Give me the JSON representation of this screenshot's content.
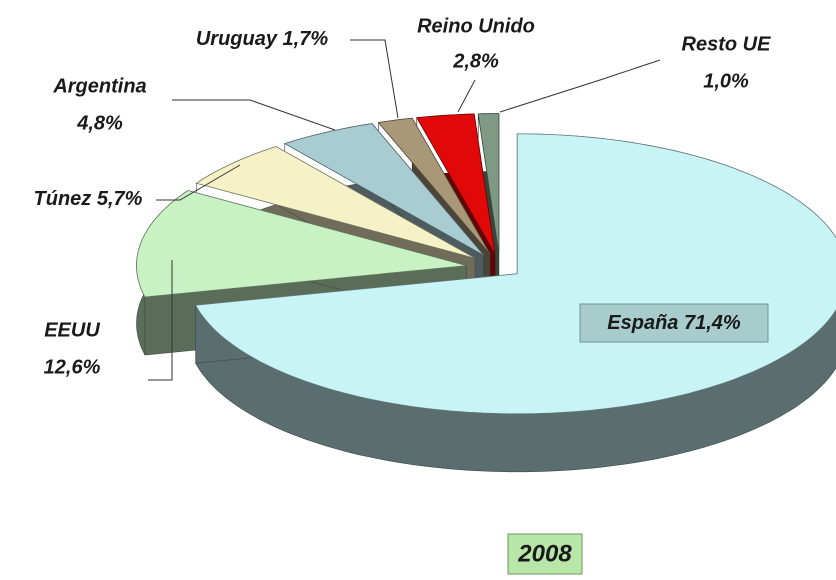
{
  "chart_data": {
    "type": "pie",
    "title": "2008",
    "categories": [
      "España",
      "EEUU",
      "Túnez",
      "Argentina",
      "Uruguay",
      "Reino Unido",
      "Resto UE"
    ],
    "values": [
      71.4,
      12.6,
      5.7,
      4.8,
      1.7,
      2.8,
      1.0
    ],
    "value_labels": [
      "71,4%",
      "12,6%",
      "5,7%",
      "4,8%",
      "1,7%",
      "2,8%",
      "1,0%"
    ],
    "colors": [
      "#c8f4f6",
      "#c8f2c4",
      "#f6f2c8",
      "#a8ccd2",
      "#a89878",
      "#e00808",
      "#7e9a84"
    ]
  }
}
